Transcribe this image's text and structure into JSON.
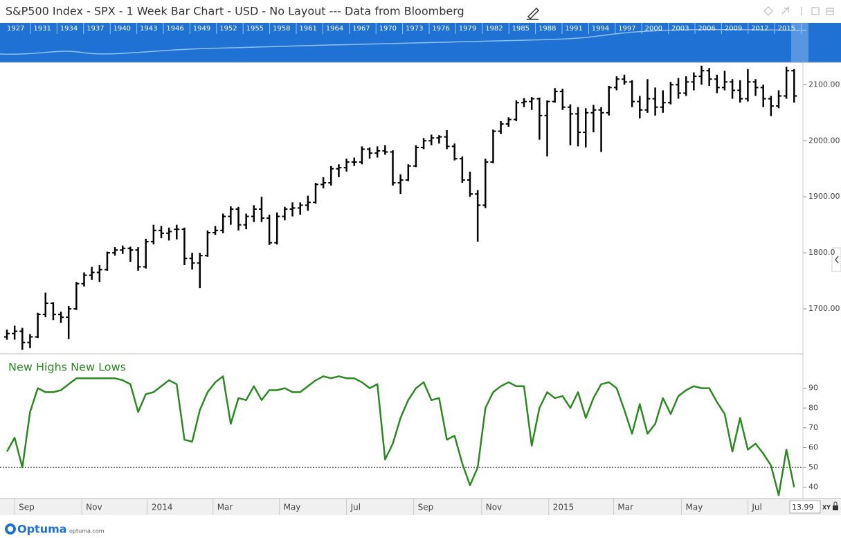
{
  "header": {
    "title": "S&P500 Index - SPX - 1 Week Bar Chart - USD - No Layout --- Data from Bloomberg"
  },
  "navigator": {
    "years": [
      "1927",
      "1931",
      "1934",
      "1937",
      "1940",
      "1943",
      "1946",
      "1949",
      "1952",
      "1955",
      "1958",
      "1961",
      "1964",
      "1967",
      "1970",
      "1973",
      "1976",
      "1979",
      "1982",
      "1985",
      "1988",
      "1991",
      "1994",
      "1997",
      "2000",
      "2003",
      "2006",
      "2009",
      "2012",
      "2015"
    ]
  },
  "chart_data": [
    {
      "type": "ohlc",
      "color": "#000000",
      "ylim": [
        1621,
        2140
      ],
      "yticks": [
        {
          "value": 1700,
          "label": "1700.00"
        },
        {
          "value": 1800,
          "label": "1800.0"
        },
        {
          "value": 1900,
          "label": "1900.00"
        },
        {
          "value": 2000,
          "label": "2000.00"
        },
        {
          "value": 2100,
          "label": "2100.00"
        }
      ],
      "grid": false,
      "open": [
        1650,
        1656,
        1660,
        1640,
        1650,
        1690,
        1710,
        1690,
        1685,
        1700,
        1745,
        1760,
        1765,
        1770,
        1800,
        1805,
        1808,
        1805,
        1775,
        1820,
        1840,
        1835,
        1842,
        1842,
        1790,
        1782,
        1795,
        1836,
        1840,
        1865,
        1878,
        1850,
        1865,
        1878,
        1862,
        1818,
        1865,
        1878,
        1880,
        1885,
        1890,
        1922,
        1925,
        1950,
        1952,
        1962,
        1962,
        1985,
        1978,
        1982,
        1980,
        1925,
        1930,
        1955,
        1988,
        2000,
        2005,
        2007,
        1990,
        1968,
        1930,
        1905,
        1885,
        1962,
        2017,
        2030,
        2038,
        2068,
        2070,
        2075,
        2045,
        2070,
        2088,
        2060,
        2048,
        2015,
        2050,
        2055,
        2050,
        2095,
        2110,
        2105,
        2070,
        2055,
        2075,
        2060,
        2068,
        2100,
        2085,
        2105,
        2115,
        2125,
        2110,
        2095,
        2105,
        2090,
        2075,
        2105,
        2095,
        2075,
        2062,
        2080,
        2125
      ],
      "high": [
        1663,
        1670,
        1666,
        1655,
        1693,
        1729,
        1712,
        1695,
        1705,
        1748,
        1765,
        1775,
        1778,
        1802,
        1810,
        1813,
        1811,
        1810,
        1825,
        1850,
        1848,
        1845,
        1850,
        1845,
        1800,
        1800,
        1840,
        1848,
        1870,
        1883,
        1882,
        1870,
        1885,
        1900,
        1868,
        1872,
        1882,
        1890,
        1890,
        1902,
        1925,
        1935,
        1955,
        1958,
        1968,
        1970,
        1990,
        1988,
        1990,
        1992,
        1983,
        1940,
        1958,
        1992,
        2005,
        2011,
        2010,
        2019,
        1995,
        1972,
        1945,
        1912,
        1968,
        2020,
        2035,
        2042,
        2072,
        2076,
        2078,
        2077,
        2072,
        2094,
        2093,
        2065,
        2060,
        2058,
        2064,
        2060,
        2098,
        2115,
        2118,
        2108,
        2080,
        2110,
        2095,
        2090,
        2105,
        2112,
        2115,
        2122,
        2134,
        2130,
        2118,
        2125,
        2110,
        2108,
        2128,
        2110,
        2100,
        2080,
        2090,
        2132,
        2128
      ],
      "low": [
        1645,
        1645,
        1627,
        1630,
        1648,
        1685,
        1680,
        1675,
        1646,
        1698,
        1740,
        1752,
        1748,
        1768,
        1795,
        1798,
        1784,
        1768,
        1772,
        1815,
        1826,
        1822,
        1824,
        1778,
        1770,
        1737,
        1793,
        1832,
        1835,
        1850,
        1840,
        1842,
        1855,
        1855,
        1814,
        1815,
        1858,
        1865,
        1868,
        1875,
        1888,
        1915,
        1920,
        1935,
        1945,
        1955,
        1958,
        1968,
        1970,
        1975,
        1920,
        1905,
        1928,
        1953,
        1985,
        1992,
        1995,
        1985,
        1965,
        1925,
        1900,
        1820,
        1880,
        1960,
        2012,
        2025,
        2035,
        2060,
        2055,
        2002,
        1972,
        2068,
        2055,
        1992,
        1990,
        1988,
        2015,
        1980,
        2045,
        2090,
        2100,
        2060,
        2040,
        2050,
        2045,
        2050,
        2065,
        2075,
        2080,
        2090,
        2100,
        2098,
        2085,
        2090,
        2075,
        2068,
        2070,
        2080,
        2060,
        2044,
        2058,
        2075,
        2068
      ],
      "close": [
        1656,
        1660,
        1640,
        1650,
        1690,
        1710,
        1690,
        1685,
        1700,
        1745,
        1760,
        1765,
        1770,
        1800,
        1805,
        1808,
        1805,
        1775,
        1820,
        1840,
        1835,
        1838,
        1842,
        1790,
        1782,
        1795,
        1836,
        1840,
        1865,
        1878,
        1850,
        1865,
        1878,
        1862,
        1818,
        1865,
        1878,
        1880,
        1885,
        1890,
        1922,
        1925,
        1950,
        1952,
        1962,
        1962,
        1985,
        1978,
        1982,
        1980,
        1925,
        1930,
        1955,
        1988,
        2000,
        2005,
        2007,
        1990,
        1968,
        1930,
        1905,
        1885,
        1962,
        2017,
        2030,
        2038,
        2068,
        2070,
        2075,
        2045,
        2070,
        2088,
        2060,
        2048,
        2015,
        2050,
        2055,
        2050,
        2095,
        2110,
        2105,
        2070,
        2055,
        2075,
        2060,
        2068,
        2100,
        2085,
        2105,
        2115,
        2125,
        2110,
        2095,
        2105,
        2090,
        2075,
        2105,
        2095,
        2075,
        2062,
        2080,
        2125,
        2080
      ]
    },
    {
      "type": "line",
      "title": "New Highs New Lows",
      "color": "#2a8a1f",
      "ylim": [
        35,
        107
      ],
      "yticks": [
        40,
        50,
        60,
        70,
        80,
        90
      ],
      "reference_line": 50,
      "xticks": [
        {
          "value": 1,
          "label": "Sep"
        },
        {
          "value": 9.7,
          "label": "Nov"
        },
        {
          "value": 18.2,
          "label": "2014"
        },
        {
          "value": 26.7,
          "label": "Mar"
        },
        {
          "value": 35.3,
          "label": "May"
        },
        {
          "value": 44,
          "label": "Jul"
        },
        {
          "value": 52.7,
          "label": "Sep"
        },
        {
          "value": 61.5,
          "label": "Nov"
        },
        {
          "value": 70.2,
          "label": "2015"
        },
        {
          "value": 78.6,
          "label": "Mar"
        },
        {
          "value": 87.4,
          "label": "May"
        },
        {
          "value": 96,
          "label": "Jul"
        }
      ],
      "values": [
        58,
        65,
        50,
        78,
        90,
        88,
        88,
        89,
        92,
        95,
        95,
        95,
        95,
        95,
        95,
        94,
        92,
        78,
        87,
        88,
        91,
        94,
        92,
        64,
        63,
        79,
        88,
        93,
        96,
        72,
        85,
        84,
        91,
        84,
        89,
        89,
        90,
        88,
        88,
        91,
        94,
        96,
        95,
        96,
        95,
        95,
        93,
        90,
        92,
        54,
        62,
        75,
        84,
        90,
        93,
        84,
        85,
        64,
        66,
        52,
        41,
        50,
        80,
        88,
        91,
        93,
        91,
        91,
        61,
        80,
        88,
        85,
        86,
        80,
        88,
        75,
        85,
        92,
        93,
        90,
        79,
        67,
        82,
        67,
        72,
        85,
        77,
        86,
        89,
        91,
        90,
        90,
        83,
        77,
        58,
        75,
        59,
        62,
        57,
        51,
        36,
        59,
        40
      ]
    }
  ],
  "footer": {
    "zoom": "13.99",
    "mode": "XY",
    "brand": "Optuma",
    "site": "optuma.com"
  }
}
